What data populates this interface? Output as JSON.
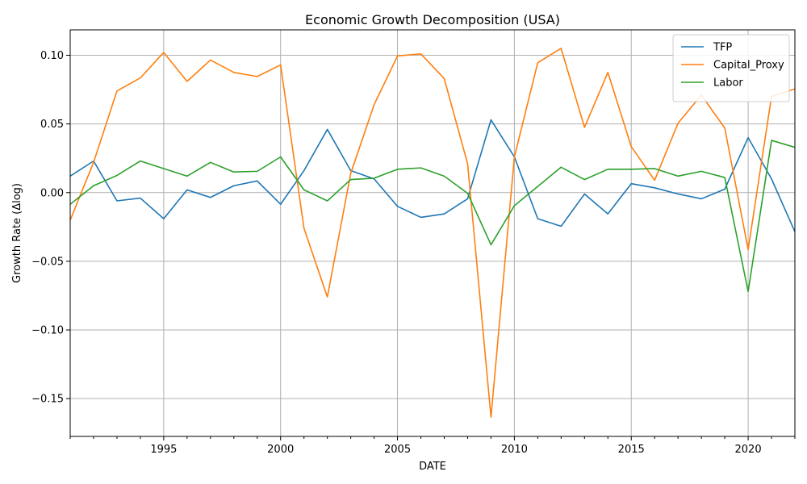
{
  "chart_data": {
    "type": "line",
    "title": "Economic Growth Decomposition (USA)",
    "xlabel": "DATE",
    "ylabel": "Growth Rate (Δlog)",
    "x": [
      1991,
      1992,
      1993,
      1994,
      1995,
      1996,
      1997,
      1998,
      1999,
      2000,
      2001,
      2002,
      2003,
      2004,
      2005,
      2006,
      2007,
      2008,
      2009,
      2010,
      2011,
      2012,
      2013,
      2014,
      2015,
      2016,
      2017,
      2018,
      2019,
      2020,
      2021,
      2022
    ],
    "xlim": [
      1991,
      2022
    ],
    "ylim": [
      -0.1775,
      0.1185
    ],
    "xticks": [
      1995,
      2000,
      2005,
      2010,
      2015,
      2020
    ],
    "xtick_labels": [
      "1995",
      "2000",
      "2005",
      "2010",
      "2015",
      "2020"
    ],
    "yticks": [
      -0.15,
      -0.1,
      -0.05,
      0.0,
      0.05,
      0.1
    ],
    "ytick_labels": [
      "−0.15",
      "−0.10",
      "−0.05",
      "0.00",
      "0.05",
      "0.10"
    ],
    "grid": true,
    "legend_position": "top-right",
    "series": [
      {
        "name": "TFP",
        "color": "#1f77b4",
        "values": [
          0.012,
          0.023,
          -0.006,
          -0.004,
          -0.019,
          0.002,
          -0.0035,
          0.005,
          0.0085,
          -0.0085,
          0.016,
          0.046,
          0.016,
          0.01,
          -0.01,
          -0.018,
          -0.0155,
          -0.0045,
          0.053,
          0.026,
          -0.019,
          -0.0245,
          -0.001,
          -0.0155,
          0.0065,
          0.0035,
          -0.001,
          -0.0045,
          0.0025,
          0.04,
          0.01,
          -0.0285
        ]
      },
      {
        "name": "Capital_Proxy",
        "color": "#ff7f0e",
        "values": [
          -0.02,
          0.022,
          0.074,
          0.0835,
          0.102,
          0.081,
          0.0965,
          0.0875,
          0.0845,
          0.093,
          -0.026,
          -0.076,
          0.014,
          0.064,
          0.0995,
          0.101,
          0.083,
          0.021,
          -0.1635,
          0.026,
          0.0945,
          0.105,
          0.0475,
          0.0875,
          0.0335,
          0.009,
          0.0505,
          0.071,
          0.047,
          -0.0415,
          0.07,
          0.0755
        ]
      },
      {
        "name": "Labor",
        "color": "#2ca02c",
        "values": [
          -0.0085,
          0.005,
          0.0125,
          0.023,
          0.0175,
          0.012,
          0.022,
          0.015,
          0.0155,
          0.026,
          0.002,
          -0.006,
          0.0095,
          0.0105,
          0.017,
          0.018,
          0.012,
          -0.0005,
          -0.038,
          -0.0095,
          0.0045,
          0.0185,
          0.0095,
          0.017,
          0.017,
          0.0175,
          0.012,
          0.0155,
          0.011,
          -0.072,
          0.038,
          0.033
        ]
      }
    ]
  }
}
